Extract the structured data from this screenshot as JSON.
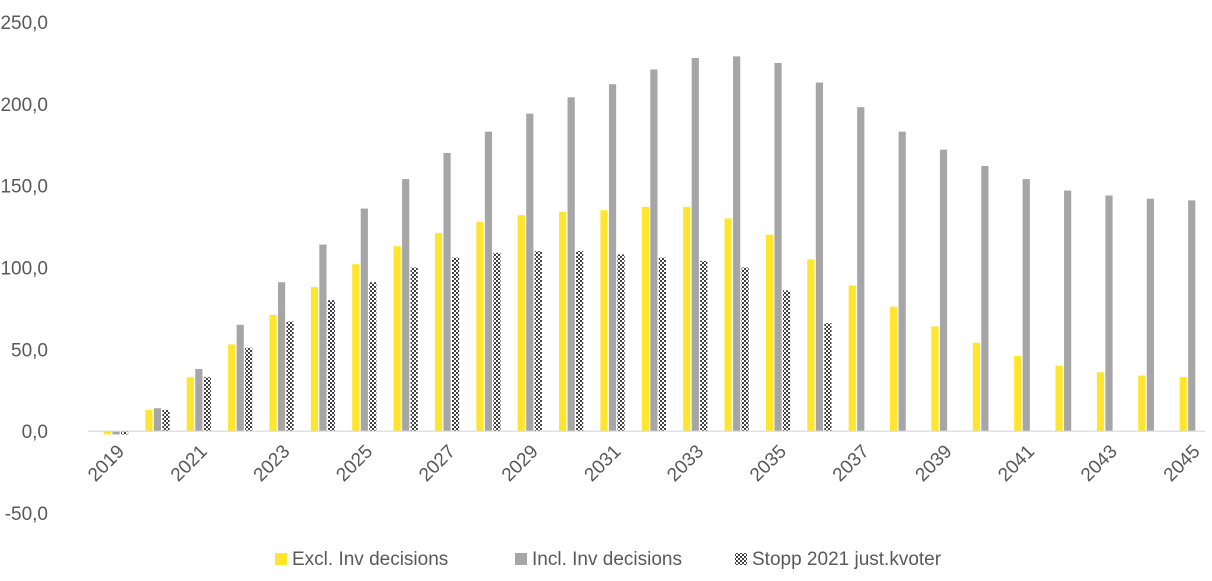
{
  "chart_data": {
    "type": "bar",
    "title": "",
    "xlabel": "",
    "ylabel": "",
    "ylim": [
      -50,
      250
    ],
    "yticks": [
      -50,
      0,
      50,
      100,
      150,
      200,
      250
    ],
    "ytick_labels": [
      "-50,0",
      "0,0",
      "50,0",
      "100,0",
      "150,0",
      "200,0",
      "250,0"
    ],
    "grid": false,
    "legend_position": "bottom",
    "categories": [
      "2019",
      "2020",
      "2021",
      "2022",
      "2023",
      "2024",
      "2025",
      "2026",
      "2027",
      "2028",
      "2029",
      "2030",
      "2031",
      "2032",
      "2033",
      "2034",
      "2035",
      "2036",
      "2037",
      "2038",
      "2039",
      "2040",
      "2041",
      "2042",
      "2043",
      "2044",
      "2045"
    ],
    "xtick_labels": [
      "2019",
      "2021",
      "2023",
      "2025",
      "2027",
      "2029",
      "2031",
      "2033",
      "2035",
      "2037",
      "2039",
      "2041",
      "2043",
      "2045"
    ],
    "series": [
      {
        "name": "Excl. Inv decisions",
        "color": "#FFE52B",
        "pattern": "solid",
        "values": [
          -2,
          13,
          33,
          53,
          71,
          88,
          102,
          113,
          121,
          128,
          132,
          134,
          135,
          137,
          137,
          130,
          120,
          105,
          89,
          76,
          64,
          54,
          46,
          40,
          36,
          34,
          33
        ]
      },
      {
        "name": "Incl. Inv decisions",
        "color": "#A6A6A6",
        "pattern": "solid",
        "values": [
          -2,
          14,
          38,
          65,
          91,
          114,
          136,
          154,
          170,
          183,
          194,
          204,
          212,
          221,
          228,
          229,
          225,
          213,
          198,
          183,
          172,
          162,
          154,
          147,
          144,
          142,
          141
        ]
      },
      {
        "name": "Stopp 2021 just.kvoter",
        "color": "#404040",
        "pattern": "checker",
        "values": [
          -2,
          13,
          33,
          51,
          67,
          80,
          91,
          100,
          106,
          109,
          110,
          110,
          108,
          106,
          104,
          100,
          86,
          66,
          null,
          null,
          null,
          null,
          null,
          null,
          null,
          null,
          null
        ]
      }
    ]
  }
}
